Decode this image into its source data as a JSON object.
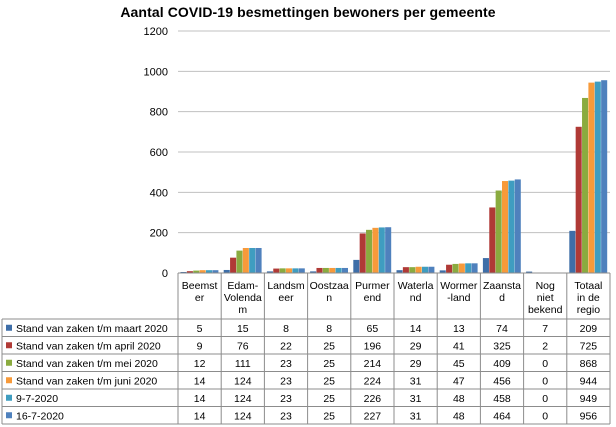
{
  "chart_data": {
    "type": "bar",
    "title": "Aantal COVID-19  besmettingen bewoners per gemeente",
    "categories": [
      [
        "Beemst",
        "er"
      ],
      [
        "Edam-",
        "Volenda",
        "m"
      ],
      [
        "Landsm",
        "eer"
      ],
      [
        "Oostzaa",
        "n"
      ],
      [
        "Purmer",
        "end"
      ],
      [
        "Waterla",
        "nd"
      ],
      [
        "Wormer",
        "-land"
      ],
      [
        "Zaansta",
        "d"
      ],
      [
        "Nog",
        "niet",
        "bekend"
      ],
      [
        "Totaal",
        "in de",
        "regio"
      ]
    ],
    "series": [
      {
        "name": "Stand van zaken t/m maart 2020",
        "color": "#3e6ea8",
        "values": [
          5,
          15,
          8,
          8,
          65,
          14,
          13,
          74,
          7,
          209
        ]
      },
      {
        "name": "Stand van zaken t/m april 2020",
        "color": "#b03a36",
        "values": [
          9,
          76,
          22,
          25,
          196,
          29,
          41,
          325,
          2,
          725
        ]
      },
      {
        "name": "Stand van zaken t/m mei 2020",
        "color": "#8aab3f",
        "values": [
          12,
          111,
          23,
          25,
          214,
          29,
          45,
          409,
          0,
          868
        ]
      },
      {
        "name": "Stand van zaken t/m juni 2020",
        "color": "#f79a3a",
        "values": [
          14,
          124,
          23,
          25,
          224,
          31,
          47,
          456,
          0,
          944
        ]
      },
      {
        "name": "9-7-2020",
        "color": "#3f9dc0",
        "values": [
          14,
          124,
          23,
          25,
          226,
          31,
          48,
          458,
          0,
          949
        ]
      },
      {
        "name": "16-7-2020",
        "color": "#4f81bd",
        "values": [
          14,
          124,
          23,
          25,
          227,
          31,
          48,
          464,
          0,
          956
        ]
      }
    ],
    "ylim": [
      0,
      1200
    ],
    "yticks": [
      0,
      200,
      400,
      600,
      800,
      1000,
      1200
    ],
    "grid": true,
    "legend": "data-table"
  }
}
